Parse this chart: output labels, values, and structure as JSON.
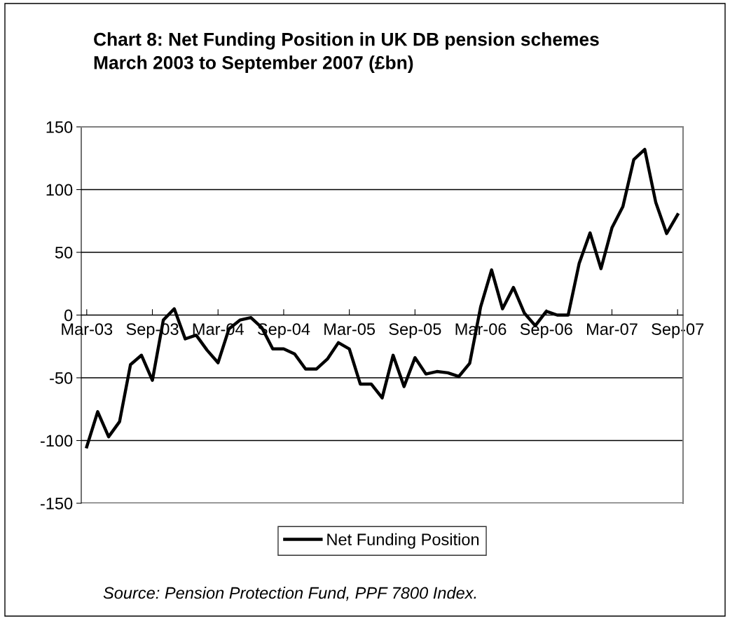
{
  "chart_data": {
    "type": "line",
    "title": "Chart 8: Net Funding Position in UK DB pension schemes\nMarch 2003 to September 2007 (£bn)",
    "categories": [
      "Mar-03",
      null,
      null,
      null,
      null,
      null,
      "Sep-03",
      null,
      null,
      null,
      null,
      null,
      "Mar-04",
      null,
      null,
      null,
      null,
      null,
      "Sep-04",
      null,
      null,
      null,
      null,
      null,
      "Mar-05",
      null,
      null,
      null,
      null,
      null,
      "Sep-05",
      null,
      null,
      null,
      null,
      null,
      "Mar-06",
      null,
      null,
      null,
      null,
      null,
      "Sep-06",
      null,
      null,
      null,
      null,
      null,
      "Mar-07",
      null,
      null,
      null,
      null,
      null,
      "Sep-07"
    ],
    "series": [
      {
        "name": "Net Funding Position",
        "color": "#000000",
        "values": [
          -105,
          -77,
          -97,
          -85,
          -39.5,
          -32,
          -52,
          -4,
          5,
          -19,
          -16,
          -28,
          -38,
          -11,
          -4,
          -2,
          -10,
          -27,
          -27,
          -31,
          -43,
          -43,
          -35,
          -22,
          -27,
          -55,
          -55,
          -66,
          -32,
          -57,
          -34,
          -47,
          -45,
          -46,
          -49,
          -38.5,
          6.5,
          36,
          5,
          22,
          1.5,
          -8.5,
          3,
          0,
          0,
          41,
          65.5,
          37,
          69.5,
          86.5,
          124,
          132,
          90,
          65,
          80
        ]
      }
    ],
    "ylim": [
      -150,
      150
    ],
    "yticks": [
      -150,
      -100,
      -50,
      0,
      50,
      100,
      150
    ],
    "grid": "y",
    "legend": "bottom",
    "marker": "none",
    "line_style": "solid",
    "annotations": [
      "Source: Pension Protection Fund, PPF 7800 Index."
    ]
  }
}
